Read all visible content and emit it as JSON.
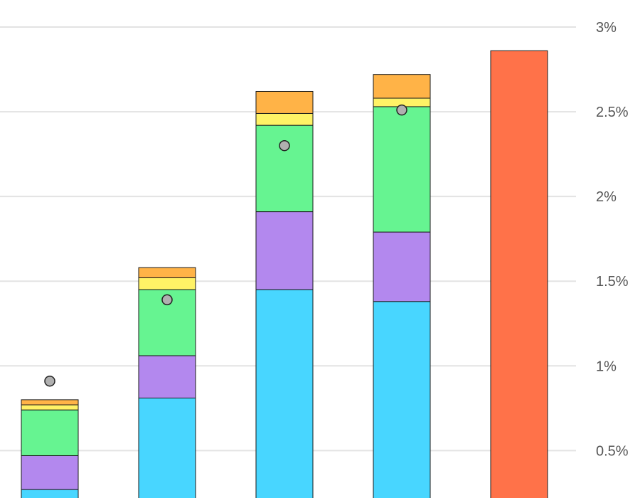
{
  "chart_data": {
    "type": "bar",
    "stacked": true,
    "categories": [
      "",
      "",
      "",
      "",
      ""
    ],
    "series": [
      {
        "color": "#48d6ff",
        "values": [
          0.27,
          0.81,
          1.45,
          1.38,
          0
        ]
      },
      {
        "color": "#b388ee",
        "values": [
          0.2,
          0.25,
          0.46,
          0.41,
          0
        ]
      },
      {
        "color": "#66f491",
        "values": [
          0.27,
          0.39,
          0.51,
          0.74,
          0
        ]
      },
      {
        "color": "#fff266",
        "values": [
          0.03,
          0.07,
          0.07,
          0.05,
          0
        ]
      },
      {
        "color": "#ffb347",
        "values": [
          0.03,
          0.06,
          0.13,
          0.14,
          0
        ]
      },
      {
        "color": "#ff7249",
        "values": [
          0,
          0,
          0,
          0,
          2.86
        ]
      }
    ],
    "markers": {
      "color": "#b0b0b0",
      "values": [
        0.91,
        1.39,
        2.3,
        2.51,
        null
      ]
    },
    "y_ticks": [
      {
        "value": 0.5,
        "label": "0.5%"
      },
      {
        "value": 1.0,
        "label": "1%"
      },
      {
        "value": 1.5,
        "label": "1.5%"
      },
      {
        "value": 2.0,
        "label": "2%"
      },
      {
        "value": 2.5,
        "label": "2.5%"
      },
      {
        "value": 3.0,
        "label": "3%"
      }
    ],
    "y_axis_position": "right",
    "grid": true,
    "ylim": [
      0.22,
      3.0
    ],
    "title": "",
    "xlabel": "",
    "ylabel": ""
  }
}
